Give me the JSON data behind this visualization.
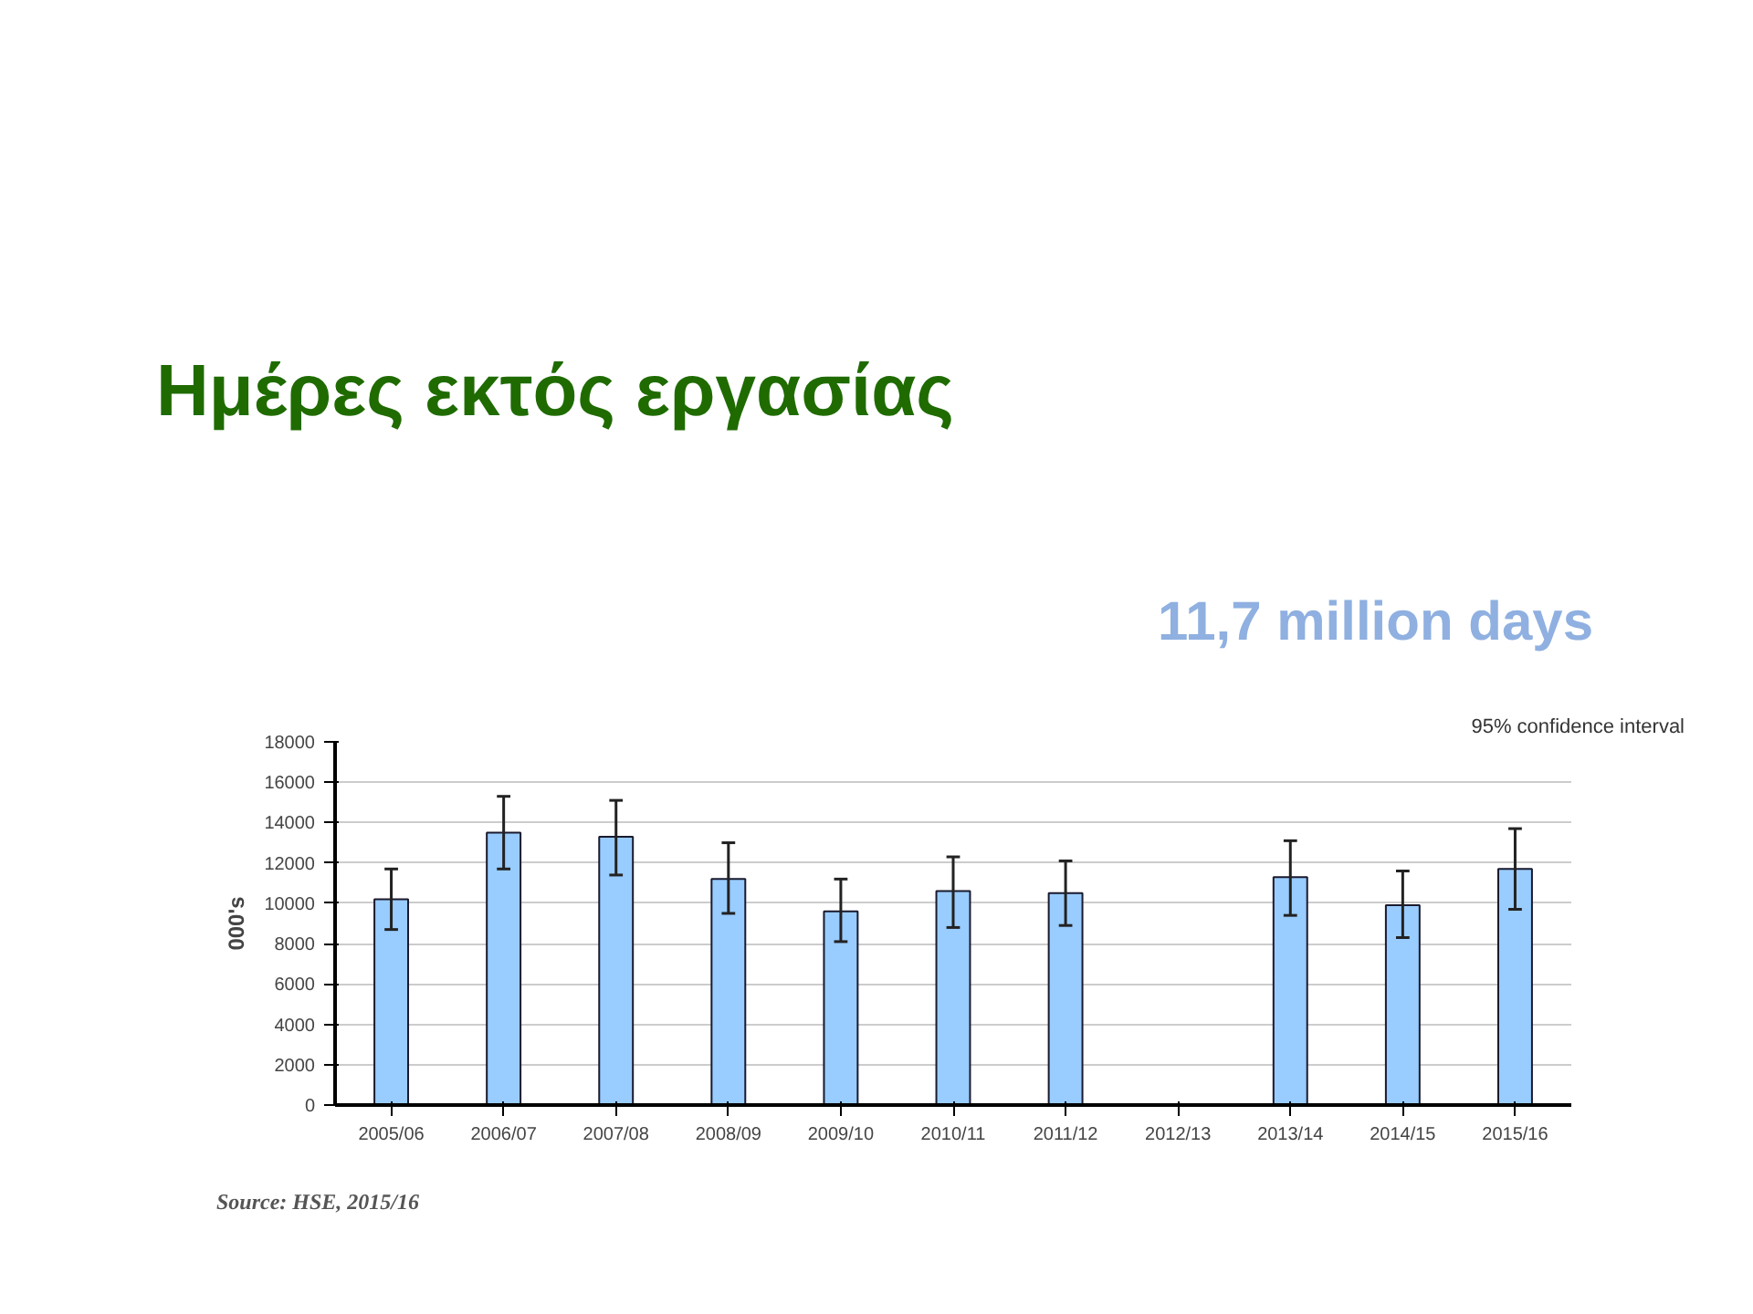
{
  "chart_data": {
    "type": "bar",
    "title": "Ημέρες εκτός εργασίας",
    "subtitle": "11,7 million days",
    "ylabel": "000's",
    "categories": [
      "2005/06",
      "2006/07",
      "2007/08",
      "2008/09",
      "2009/10",
      "2010/11",
      "2011/12",
      "2012/13",
      "2013/14",
      "2014/15",
      "2015/16"
    ],
    "values": [
      10200,
      13500,
      13300,
      11200,
      9600,
      10600,
      10500,
      null,
      11300,
      9900,
      11700
    ],
    "errors": [
      [
        8700,
        11700
      ],
      [
        11700,
        15300
      ],
      [
        11400,
        15100
      ],
      [
        9500,
        13000
      ],
      [
        8100,
        11200
      ],
      [
        8800,
        12300
      ],
      [
        8900,
        12100
      ],
      null,
      [
        9400,
        13100
      ],
      [
        8300,
        11600
      ],
      [
        9700,
        13700
      ]
    ],
    "color": "#99ccff",
    "ylim": [
      0,
      18000
    ],
    "yticks": [
      0,
      2000,
      4000,
      6000,
      8000,
      10000,
      12000,
      14000,
      16000,
      18000
    ],
    "grid": "y",
    "annotations": [
      "95% confidence interval",
      "Source: HSE, 2015/16"
    ]
  }
}
